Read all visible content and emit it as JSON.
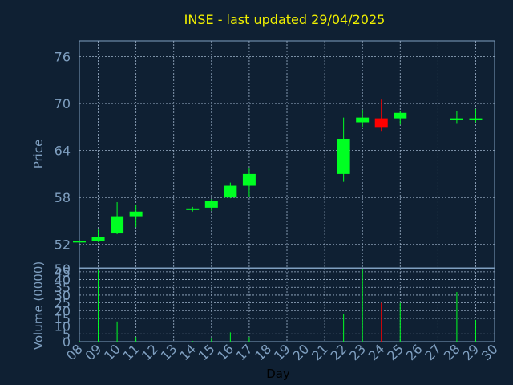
{
  "chart_data": {
    "type": "candlestick",
    "title": "INSE - last updated 29/04/2025",
    "xlabel": "Day",
    "colors": {
      "background": "#0f2033",
      "frame": "#7f9fc0",
      "grid": "#9fb4cc",
      "up": "#00ff22",
      "down": "#ff0000",
      "title": "#f0f000"
    },
    "x_ticks": [
      "08",
      "09",
      "10",
      "11",
      "12",
      "13",
      "14",
      "15",
      "16",
      "17",
      "18",
      "19",
      "20",
      "21",
      "22",
      "23",
      "24",
      "25",
      "26",
      "27",
      "28",
      "29",
      "30"
    ],
    "price": {
      "ylabel": "Price",
      "ylim": [
        49,
        78
      ],
      "ticks": [
        52,
        58,
        64,
        70,
        76
      ],
      "tick_labels": [
        "52",
        "58",
        "64",
        "70",
        "76"
      ],
      "grid": true
    },
    "volume": {
      "ylabel": "Volume (0000)",
      "ylim": [
        0,
        47
      ],
      "ticks": [
        0,
        5,
        10,
        15,
        20,
        25,
        30,
        35,
        40,
        45
      ],
      "tick_labels": [
        "0",
        "5",
        "10",
        "15",
        "20",
        "25",
        "30",
        "35",
        "40",
        "45"
      ],
      "top_label": "50",
      "grid": true
    },
    "candles": [
      {
        "day": "08",
        "open": 52.3,
        "high": 52.4,
        "low": 52.2,
        "close": 52.4,
        "volume": 0.5
      },
      {
        "day": "09",
        "open": 52.4,
        "high": 53.9,
        "low": 52.3,
        "close": 52.9,
        "volume": 46
      },
      {
        "day": "10",
        "open": 53.4,
        "high": 57.4,
        "low": 53.3,
        "close": 55.6,
        "volume": 13
      },
      {
        "day": "11",
        "open": 55.6,
        "high": 57.1,
        "low": 54.2,
        "close": 56.2,
        "volume": 3
      },
      {
        "day": "14",
        "open": 56.4,
        "high": 56.8,
        "low": 56.2,
        "close": 56.6,
        "volume": 0.5
      },
      {
        "day": "15",
        "open": 56.7,
        "high": 57.8,
        "low": 56.3,
        "close": 57.6,
        "volume": 2
      },
      {
        "day": "16",
        "open": 58.0,
        "high": 59.9,
        "low": 57.9,
        "close": 59.5,
        "volume": 6
      },
      {
        "day": "17",
        "open": 59.5,
        "high": 61.7,
        "low": 58.1,
        "close": 61.0,
        "volume": 3
      },
      {
        "day": "22",
        "open": 61.0,
        "high": 68.2,
        "low": 60.0,
        "close": 65.5,
        "volume": 18
      },
      {
        "day": "23",
        "open": 67.6,
        "high": 69.2,
        "low": 67.0,
        "close": 68.2,
        "volume": 47
      },
      {
        "day": "24",
        "open": 68.1,
        "high": 70.5,
        "low": 66.5,
        "close": 67.0,
        "volume": 25
      },
      {
        "day": "25",
        "open": 68.1,
        "high": 69.0,
        "low": 67.3,
        "close": 68.8,
        "volume": 25
      },
      {
        "day": "28",
        "open": 68.0,
        "high": 69.0,
        "low": 67.5,
        "close": 68.1,
        "volume": 32
      },
      {
        "day": "29",
        "open": 68.0,
        "high": 69.3,
        "low": 67.6,
        "close": 68.1,
        "volume": 14
      }
    ]
  }
}
